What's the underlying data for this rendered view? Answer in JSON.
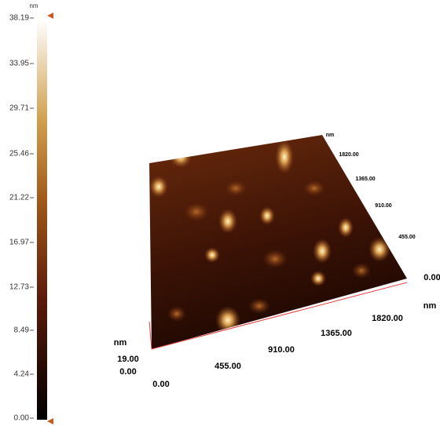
{
  "colorbar": {
    "unit": "nm",
    "ticks": [
      "38.19",
      "33.95",
      "29.71",
      "25.46",
      "21.22",
      "16.97",
      "12.73",
      "8.49",
      "4.24",
      "0.00"
    ]
  },
  "plot": {
    "z_unit": "nm",
    "z_max": "19.00",
    "z_min": "0.00",
    "x_labels": [
      "0.00",
      "455.00",
      "910.00",
      "1365.00",
      "1820.00"
    ],
    "x_unit": "nm",
    "y_start": "0.00",
    "y_labels": [
      "455.00",
      "910.00",
      "1365.00",
      "1820.00"
    ],
    "y_unit": "nm"
  }
}
